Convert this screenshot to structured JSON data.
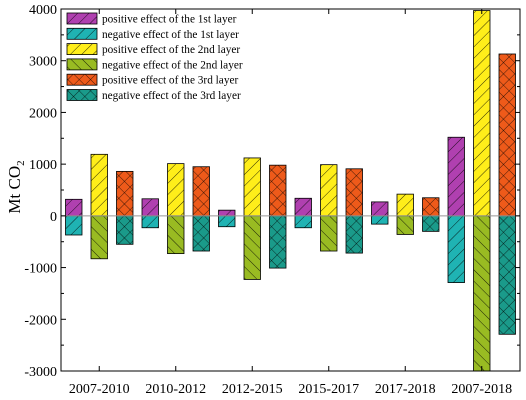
{
  "chart_data": {
    "type": "bar",
    "categories": [
      "2007-2010",
      "2010-2012",
      "2012-2015",
      "2015-2017",
      "2017-2018",
      "2007-2018"
    ],
    "ylabel": "Mt CO",
    "ylabel_subscript": "2",
    "ylim": [
      -3000,
      4000
    ],
    "yticks": [
      -3000,
      -2000,
      -1000,
      0,
      1000,
      2000,
      3000,
      4000
    ],
    "ytick_labels": [
      "-3000",
      "-2000",
      "-1000",
      "0",
      "1000",
      "2000",
      "3000",
      "4000"
    ],
    "grid": false,
    "legend_position": "top-left",
    "bar_groups": [
      {
        "layer": "1st",
        "positive_series": 0,
        "negative_series": 1
      },
      {
        "layer": "2nd",
        "positive_series": 2,
        "negative_series": 3
      },
      {
        "layer": "3rd",
        "positive_series": 4,
        "negative_series": 5
      }
    ],
    "series": [
      {
        "name": "positive effect of the 1st layer",
        "color": "#b040b0",
        "hatch": "diag-forward",
        "values": [
          320,
          330,
          110,
          340,
          270,
          1520
        ]
      },
      {
        "name": "negative effect of the 1st layer",
        "color": "#1fb3b3",
        "hatch": "diag-forward",
        "values": [
          -370,
          -230,
          -210,
          -230,
          -160,
          -1290
        ]
      },
      {
        "name": "positive effect of the 2nd layer",
        "color": "#ffee1a",
        "hatch": "diag-forward",
        "values": [
          1190,
          1010,
          1120,
          990,
          420,
          3970
        ]
      },
      {
        "name": "negative effect of the 2nd layer",
        "color": "#99bb22",
        "hatch": "diag-back",
        "values": [
          -830,
          -730,
          -1230,
          -680,
          -360,
          -3000
        ]
      },
      {
        "name": "positive effect of the 3rd layer",
        "color": "#ee5a1a",
        "hatch": "cross",
        "values": [
          860,
          950,
          980,
          910,
          350,
          3130
        ]
      },
      {
        "name": "negative effect of the 3rd layer",
        "color": "#1a9a8a",
        "hatch": "cross",
        "values": [
          -550,
          -680,
          -1010,
          -720,
          -300,
          -2290
        ]
      }
    ]
  }
}
